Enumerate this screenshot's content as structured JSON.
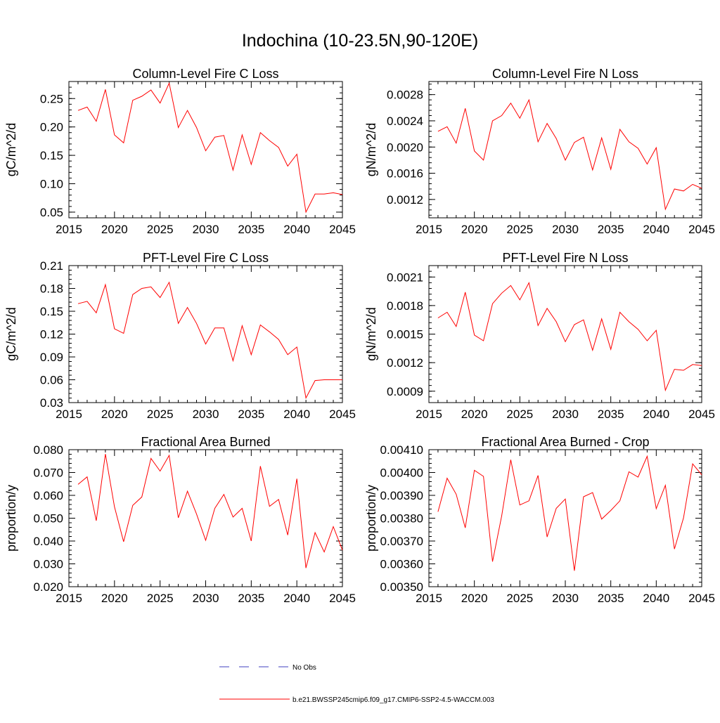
{
  "figure_title": "Indochina (10-23.5N,90-120E)",
  "legend": {
    "obs_label": "No Obs",
    "model_label": "b.e21.BWSSP245cmip6.f09_g17.CMIP6-SSP2-4.5-WACCM.003",
    "obs_color": "#3f3fbf",
    "model_color": "#ff0000"
  },
  "chart_data": [
    {
      "type": "line",
      "title": "Column-Level Fire C Loss",
      "ylabel": "gC/m^2/d",
      "xlim": [
        2015,
        2045
      ],
      "ylim": [
        0.04,
        0.28
      ],
      "xticks": [
        "2015",
        "2020",
        "2025",
        "2030",
        "2035",
        "2040",
        "2045"
      ],
      "yticks": [
        "0.05",
        "0.10",
        "0.15",
        "0.20",
        "0.25"
      ],
      "x": [
        2016,
        2017,
        2018,
        2019,
        2020,
        2021,
        2022,
        2023,
        2024,
        2025,
        2026,
        2027,
        2028,
        2029,
        2030,
        2031,
        2032,
        2033,
        2034,
        2035,
        2036,
        2037,
        2038,
        2039,
        2040,
        2041,
        2042,
        2043,
        2044,
        2045
      ],
      "series": [
        {
          "name": "b.e21.BWSSP245cmip6.f09_g17.CMIP6-SSP2-4.5-WACCM.003",
          "values": [
            0.229,
            0.235,
            0.21,
            0.266,
            0.186,
            0.172,
            0.247,
            0.254,
            0.265,
            0.242,
            0.277,
            0.199,
            0.229,
            0.199,
            0.158,
            0.182,
            0.185,
            0.124,
            0.186,
            0.134,
            0.19,
            0.176,
            0.164,
            0.131,
            0.152,
            0.05,
            0.082,
            0.082,
            0.084,
            0.081
          ]
        }
      ]
    },
    {
      "type": "line",
      "title": "Column-Level Fire N Loss",
      "ylabel": "gN/m^2/d",
      "xlim": [
        2015,
        2045
      ],
      "ylim": [
        0.00092,
        0.003
      ],
      "xticks": [
        "2015",
        "2020",
        "2025",
        "2030",
        "2035",
        "2040",
        "2045"
      ],
      "yticks": [
        "0.0012",
        "0.0016",
        "0.0020",
        "0.0024",
        "0.0028"
      ],
      "x": [
        2016,
        2017,
        2018,
        2019,
        2020,
        2021,
        2022,
        2023,
        2024,
        2025,
        2026,
        2027,
        2028,
        2029,
        2030,
        2031,
        2032,
        2033,
        2034,
        2035,
        2036,
        2037,
        2038,
        2039,
        2040,
        2041,
        2042,
        2043,
        2044,
        2045
      ],
      "series": [
        {
          "name": "b.e21.BWSSP245cmip6.f09_g17.CMIP6-SSP2-4.5-WACCM.003",
          "values": [
            0.00224,
            0.00231,
            0.00206,
            0.00259,
            0.00194,
            0.0018,
            0.0024,
            0.00248,
            0.00267,
            0.00244,
            0.00272,
            0.00208,
            0.00236,
            0.00213,
            0.0018,
            0.00207,
            0.00215,
            0.00165,
            0.00214,
            0.00166,
            0.00227,
            0.00208,
            0.00198,
            0.00174,
            0.00199,
            0.00105,
            0.00136,
            0.00133,
            0.00143,
            0.00137
          ]
        }
      ]
    },
    {
      "type": "line",
      "title": "PFT-Level Fire C Loss",
      "ylabel": "gC/m^2/d",
      "xlim": [
        2015,
        2045
      ],
      "ylim": [
        0.03,
        0.21
      ],
      "xticks": [
        "2015",
        "2020",
        "2025",
        "2030",
        "2035",
        "2040",
        "2045"
      ],
      "yticks": [
        "0.03",
        "0.06",
        "0.09",
        "0.12",
        "0.15",
        "0.18",
        "0.21"
      ],
      "x": [
        2016,
        2017,
        2018,
        2019,
        2020,
        2021,
        2022,
        2023,
        2024,
        2025,
        2026,
        2027,
        2028,
        2029,
        2030,
        2031,
        2032,
        2033,
        2034,
        2035,
        2036,
        2037,
        2038,
        2039,
        2040,
        2041,
        2042,
        2043,
        2044,
        2045
      ],
      "series": [
        {
          "name": "b.e21.BWSSP245cmip6.f09_g17.CMIP6-SSP2-4.5-WACCM.003",
          "values": [
            0.16,
            0.163,
            0.148,
            0.185,
            0.127,
            0.121,
            0.172,
            0.18,
            0.182,
            0.168,
            0.188,
            0.134,
            0.155,
            0.134,
            0.107,
            0.128,
            0.128,
            0.085,
            0.131,
            0.093,
            0.132,
            0.123,
            0.113,
            0.093,
            0.103,
            0.036,
            0.059,
            0.06,
            0.06,
            0.06
          ]
        }
      ]
    },
    {
      "type": "line",
      "title": "PFT-Level Fire N Loss",
      "ylabel": "gN/m^2/d",
      "xlim": [
        2015,
        2045
      ],
      "ylim": [
        0.00078,
        0.00222
      ],
      "xticks": [
        "2015",
        "2020",
        "2025",
        "2030",
        "2035",
        "2040",
        "2045"
      ],
      "yticks": [
        "0.0009",
        "0.0012",
        "0.0015",
        "0.0018",
        "0.0021"
      ],
      "x": [
        2016,
        2017,
        2018,
        2019,
        2020,
        2021,
        2022,
        2023,
        2024,
        2025,
        2026,
        2027,
        2028,
        2029,
        2030,
        2031,
        2032,
        2033,
        2034,
        2035,
        2036,
        2037,
        2038,
        2039,
        2040,
        2041,
        2042,
        2043,
        2044,
        2045
      ],
      "series": [
        {
          "name": "b.e21.BWSSP245cmip6.f09_g17.CMIP6-SSP2-4.5-WACCM.003",
          "values": [
            0.00167,
            0.00173,
            0.00158,
            0.00194,
            0.00149,
            0.00143,
            0.00182,
            0.00193,
            0.00201,
            0.00186,
            0.00204,
            0.00159,
            0.00177,
            0.00163,
            0.00142,
            0.0016,
            0.00165,
            0.00133,
            0.00166,
            0.00134,
            0.00173,
            0.00163,
            0.00155,
            0.00143,
            0.00154,
            0.00091,
            0.00113,
            0.00112,
            0.00118,
            0.00117
          ]
        }
      ]
    },
    {
      "type": "line",
      "title": "Fractional Area Burned",
      "ylabel": "proportion/y",
      "xlim": [
        2015,
        2045
      ],
      "ylim": [
        0.02,
        0.08
      ],
      "xticks": [
        "2015",
        "2020",
        "2025",
        "2030",
        "2035",
        "2040",
        "2045"
      ],
      "yticks": [
        "0.020",
        "0.030",
        "0.040",
        "0.050",
        "0.060",
        "0.070",
        "0.080"
      ],
      "x": [
        2016,
        2017,
        2018,
        2019,
        2020,
        2021,
        2022,
        2023,
        2024,
        2025,
        2026,
        2027,
        2028,
        2029,
        2030,
        2031,
        2032,
        2033,
        2034,
        2035,
        2036,
        2037,
        2038,
        2039,
        2040,
        2041,
        2042,
        2043,
        2044,
        2045
      ],
      "series": [
        {
          "name": "b.e21.BWSSP245cmip6.f09_g17.CMIP6-SSP2-4.5-WACCM.003",
          "values": [
            0.0648,
            0.0681,
            0.0489,
            0.0781,
            0.055,
            0.0397,
            0.0556,
            0.0593,
            0.0762,
            0.0706,
            0.0775,
            0.0502,
            0.0618,
            0.0518,
            0.0403,
            0.0543,
            0.0604,
            0.0505,
            0.0543,
            0.04,
            0.0728,
            0.0552,
            0.0582,
            0.0426,
            0.0673,
            0.0282,
            0.0437,
            0.0352,
            0.0463,
            0.036
          ]
        }
      ]
    },
    {
      "type": "line",
      "title": "Fractional Area Burned - Crop",
      "ylabel": "proportion/y",
      "xlim": [
        2015,
        2045
      ],
      "ylim": [
        0.0035,
        0.0041
      ],
      "xticks": [
        "2015",
        "2020",
        "2025",
        "2030",
        "2035",
        "2040",
        "2045"
      ],
      "yticks": [
        "0.00350",
        "0.00360",
        "0.00370",
        "0.00380",
        "0.00390",
        "0.00400",
        "0.00410"
      ],
      "x": [
        2016,
        2017,
        2018,
        2019,
        2020,
        2021,
        2022,
        2023,
        2024,
        2025,
        2026,
        2027,
        2028,
        2029,
        2030,
        2031,
        2032,
        2033,
        2034,
        2035,
        2036,
        2037,
        2038,
        2039,
        2040,
        2041,
        2042,
        2043,
        2044,
        2045
      ],
      "series": [
        {
          "name": "b.e21.BWSSP245cmip6.f09_g17.CMIP6-SSP2-4.5-WACCM.003",
          "values": [
            0.003828,
            0.003975,
            0.003905,
            0.003758,
            0.00401,
            0.003983,
            0.00361,
            0.00381,
            0.004056,
            0.003858,
            0.003876,
            0.003987,
            0.003718,
            0.003843,
            0.003884,
            0.00357,
            0.003894,
            0.003912,
            0.003796,
            0.003834,
            0.003876,
            0.004003,
            0.00398,
            0.004071,
            0.003842,
            0.003944,
            0.003665,
            0.003801,
            0.004038,
            0.00399
          ]
        }
      ]
    }
  ]
}
